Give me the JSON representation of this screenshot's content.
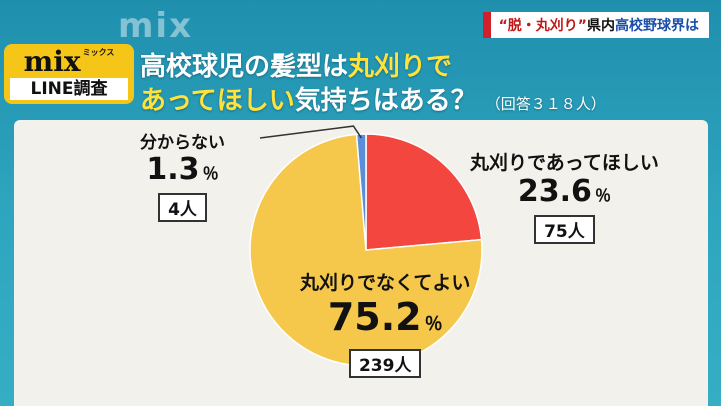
{
  "watermark": "mix",
  "ticker": {
    "part1": "“脱・丸刈り”",
    "part2": "県内",
    "part3": "高校野球界は"
  },
  "logo": {
    "name": "mix",
    "kana": "ミックス",
    "sub": "LINE調査"
  },
  "title": {
    "line1_a": "高校球児の髪型は",
    "line1_b": "丸刈りで",
    "line2_a": "あってほしい",
    "line2_b": "気持ちはある？",
    "note": "（回答３１８人）"
  },
  "colors": {
    "yes": "#f2463f",
    "no": "#f5c84c",
    "unknown": "#5b8ed8",
    "panel": "#f3f1ec"
  },
  "chart_data": {
    "type": "pie",
    "title": "高校球児の髪型は丸刈りであってほしい気持ちはある？",
    "total_label": "（回答３１８人）",
    "slices": [
      {
        "label": "丸刈りであってほしい",
        "value": 23.6,
        "pct_text": "23.6",
        "count": "75人",
        "color": "#f2463f"
      },
      {
        "label": "丸刈りでなくてよい",
        "value": 75.2,
        "pct_text": "75.2",
        "count": "239人",
        "color": "#f5c84c"
      },
      {
        "label": "分からない",
        "value": 1.3,
        "pct_text": "1.3",
        "count": "4人",
        "color": "#5b8ed8"
      }
    ],
    "unit": "％"
  }
}
